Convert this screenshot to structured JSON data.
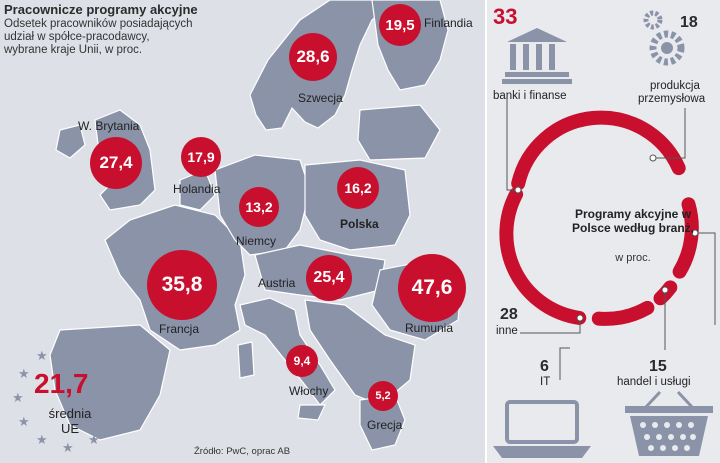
{
  "title": "Pracownicze programy akcyjne",
  "subtitle": "Odsetek pracowników posiadających udział w spółce-pracodawcy, wybrane kraje Unii, w proc.",
  "source": "Źródło: PwC, oprac AB",
  "countries": [
    {
      "name": "Finlandia",
      "value": "19,5"
    },
    {
      "name": "Szwecja",
      "value": "28,6"
    },
    {
      "name": "W. Brytania",
      "value": "27,4"
    },
    {
      "name": "Holandia",
      "value": "17,9"
    },
    {
      "name": "Niemcy",
      "value": "13,2"
    },
    {
      "name": "Polska",
      "value": "16,2"
    },
    {
      "name": "Francja",
      "value": "35,8"
    },
    {
      "name": "Austria",
      "value": "25,4"
    },
    {
      "name": "Rumunia",
      "value": "47,6"
    },
    {
      "name": "Włochy",
      "value": "9,4"
    },
    {
      "name": "Grecja",
      "value": "5,2"
    }
  ],
  "average": {
    "value": "21,7",
    "label1": "średnia",
    "label2": "UE"
  },
  "sectors": {
    "title": "Programy akcyjne w Polsce według branż,",
    "unit": "w proc.",
    "items": [
      {
        "label": "banki i finanse",
        "value": "33",
        "icon": "bank-icon"
      },
      {
        "label1": "produkcja",
        "label2": "przemysłowa",
        "value": "18",
        "icon": "gears-icon"
      },
      {
        "label": "inne",
        "value": "28"
      },
      {
        "label": "IT",
        "value": "6",
        "icon": "laptop-icon"
      },
      {
        "label": "handel i usługi",
        "value": "15",
        "icon": "basket-icon"
      }
    ]
  },
  "colors": {
    "accent": "#c8102e",
    "land": "#8a93a8",
    "sea": "#dde0e6"
  }
}
